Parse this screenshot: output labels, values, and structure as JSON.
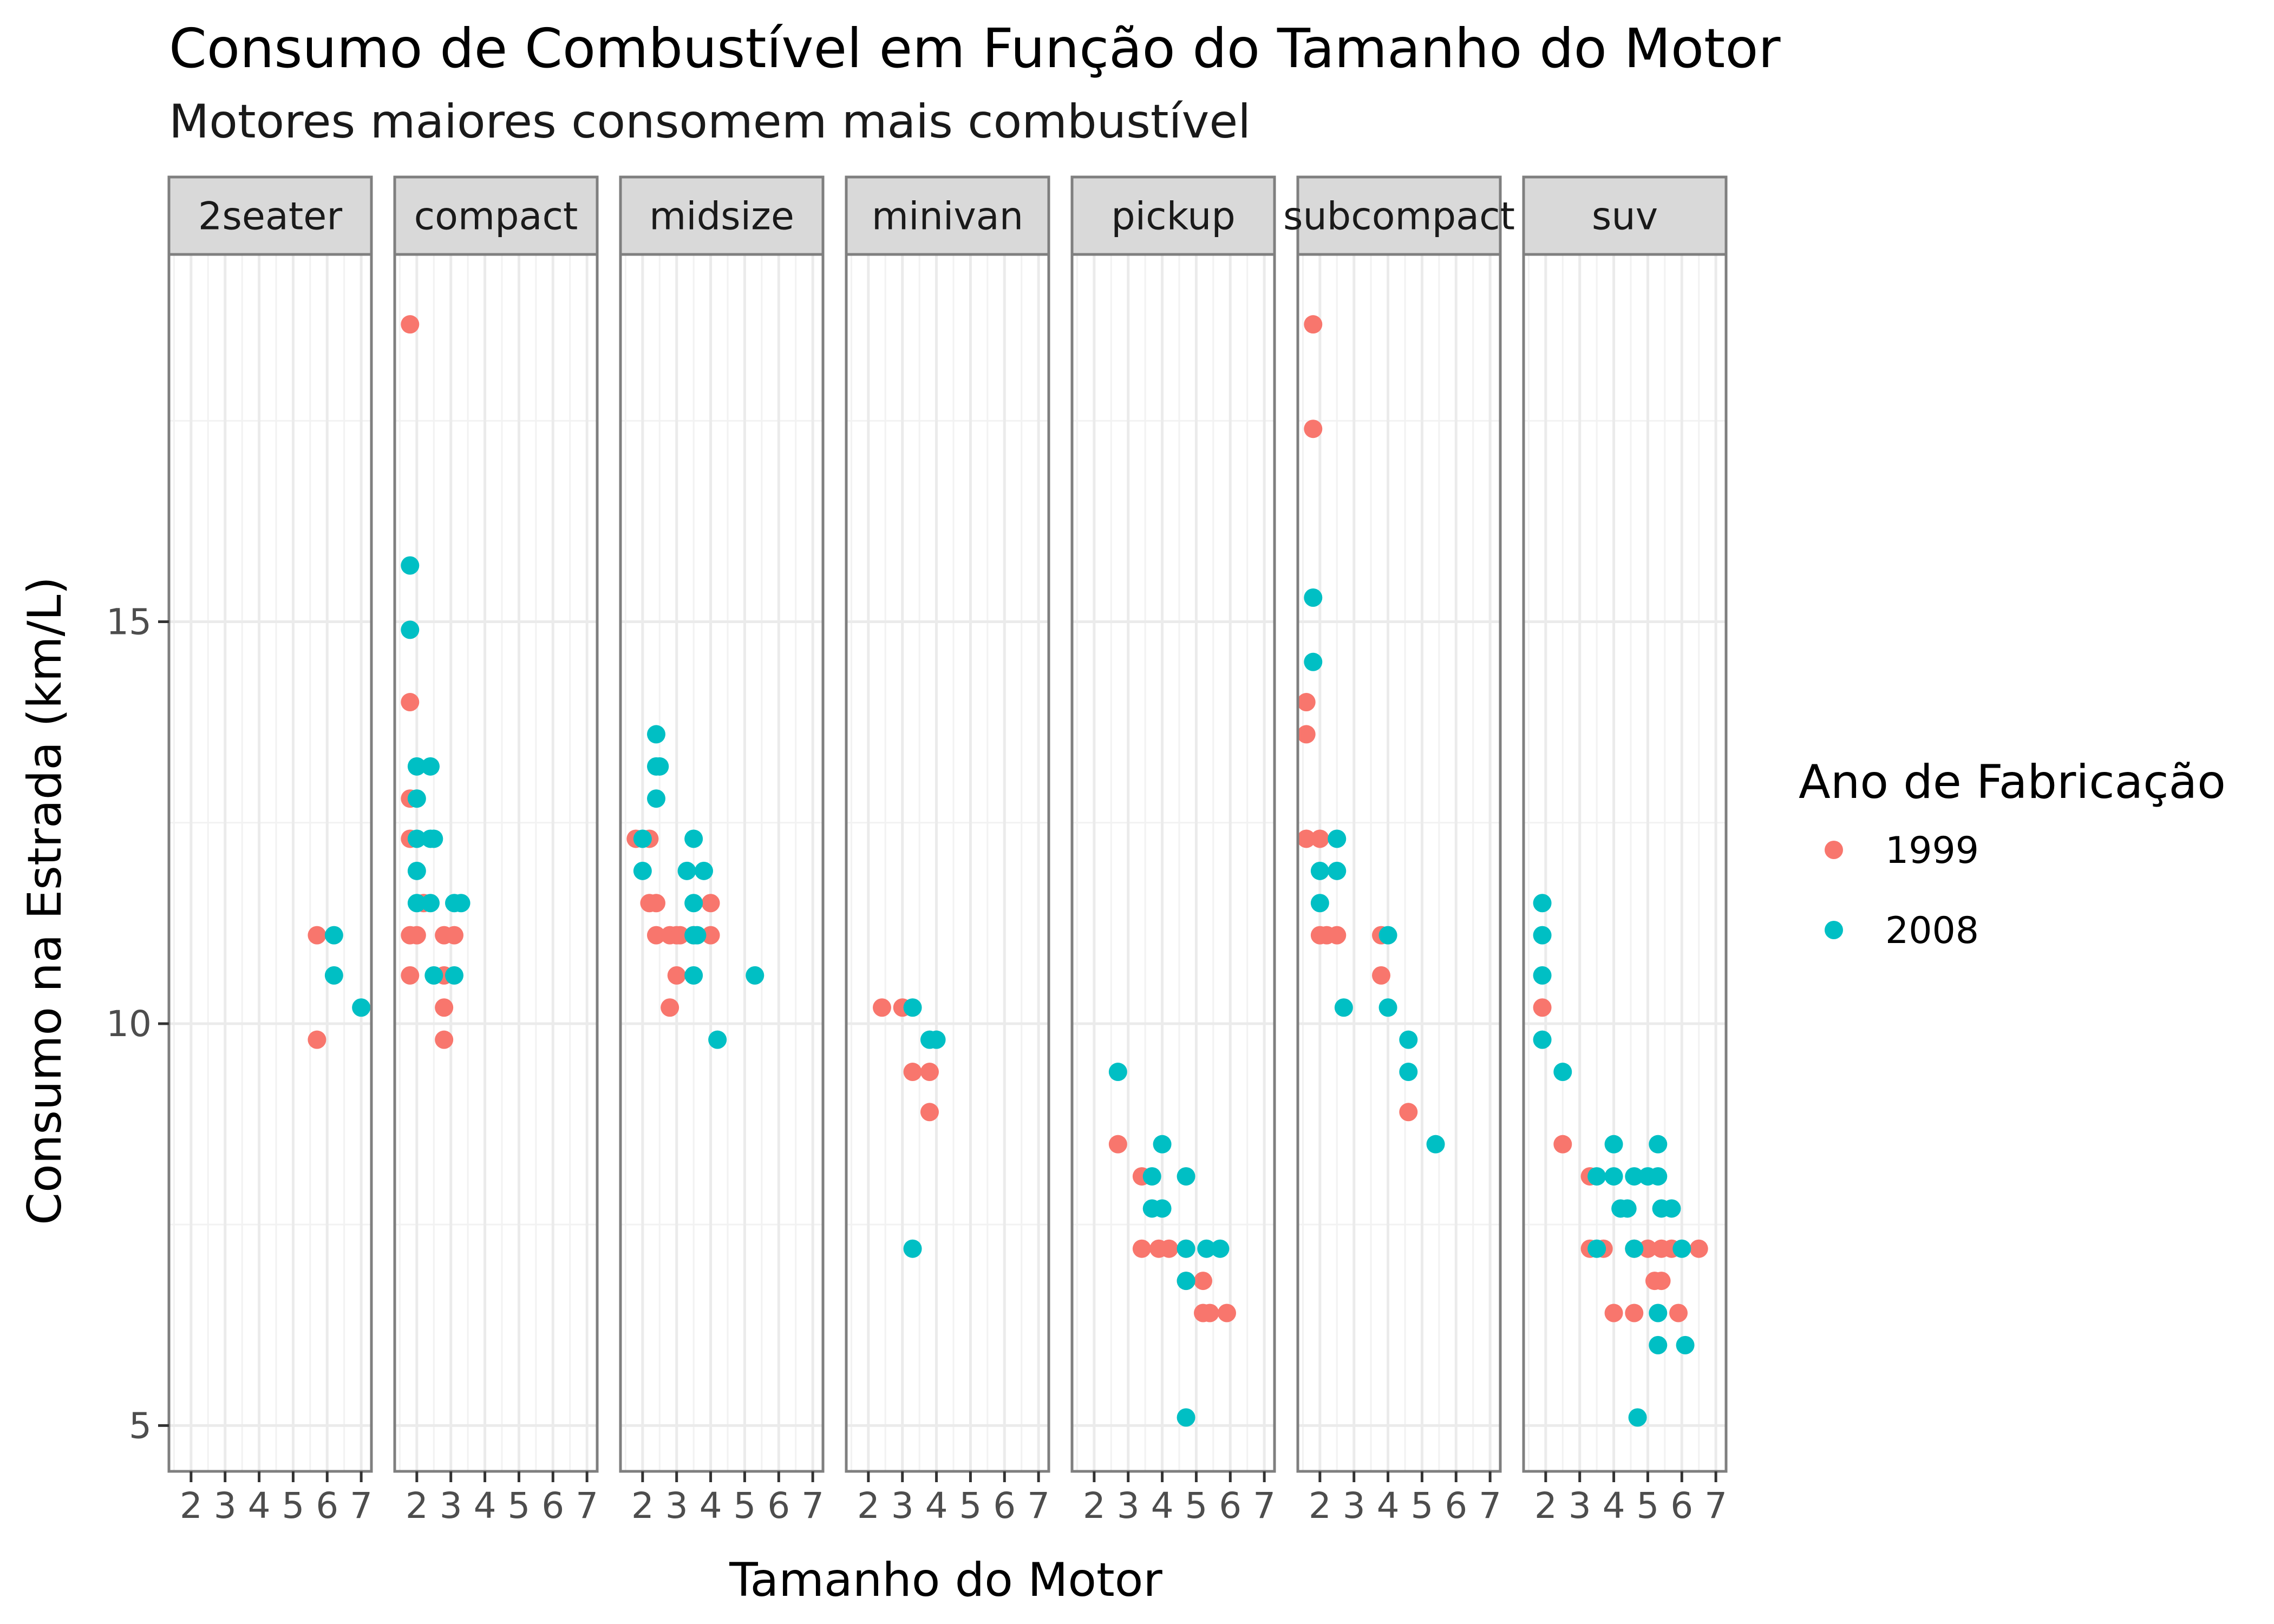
{
  "chart_data": {
    "type": "scatter",
    "title": "Consumo de Combustível em Função do Tamanho do Motor",
    "subtitle": "Motores maiores consomem mais combustível",
    "xlabel": "Tamanho do Motor",
    "ylabel": "Consumo na Estrada (km/L)",
    "xlim": [
      1.35,
      7.3
    ],
    "ylim": [
      4.43,
      19.57
    ],
    "x_ticks": [
      2,
      3,
      4,
      5,
      6,
      7
    ],
    "y_ticks": [
      5,
      10,
      15
    ],
    "grid": true,
    "legend": {
      "title": "Ano de Fabricação",
      "position": "right"
    },
    "colors": {
      "1999": "#F8766D",
      "2008": "#00BFC4"
    },
    "facets": [
      "2seater",
      "compact",
      "midsize",
      "minivan",
      "pickup",
      "subcompact",
      "suv"
    ],
    "series": [
      {
        "name": "1999",
        "points": [
          {
            "facet": "2seater",
            "x": 5.7,
            "y": 11.1
          },
          {
            "facet": "2seater",
            "x": 5.7,
            "y": 9.8
          },
          {
            "facet": "compact",
            "x": 1.8,
            "y": 18.7
          },
          {
            "facet": "compact",
            "x": 1.8,
            "y": 14.0
          },
          {
            "facet": "compact",
            "x": 1.8,
            "y": 12.8
          },
          {
            "facet": "compact",
            "x": 1.8,
            "y": 12.3
          },
          {
            "facet": "compact",
            "x": 1.8,
            "y": 11.1
          },
          {
            "facet": "compact",
            "x": 1.8,
            "y": 10.6
          },
          {
            "facet": "compact",
            "x": 2.0,
            "y": 11.1
          },
          {
            "facet": "compact",
            "x": 2.2,
            "y": 11.5
          },
          {
            "facet": "compact",
            "x": 2.8,
            "y": 11.1
          },
          {
            "facet": "compact",
            "x": 2.8,
            "y": 10.6
          },
          {
            "facet": "compact",
            "x": 2.8,
            "y": 10.2
          },
          {
            "facet": "compact",
            "x": 2.8,
            "y": 9.8
          },
          {
            "facet": "compact",
            "x": 3.1,
            "y": 11.1
          },
          {
            "facet": "midsize",
            "x": 1.8,
            "y": 12.3
          },
          {
            "facet": "midsize",
            "x": 2.2,
            "y": 12.3
          },
          {
            "facet": "midsize",
            "x": 2.2,
            "y": 11.5
          },
          {
            "facet": "midsize",
            "x": 2.4,
            "y": 11.5
          },
          {
            "facet": "midsize",
            "x": 2.4,
            "y": 11.1
          },
          {
            "facet": "midsize",
            "x": 2.8,
            "y": 11.1
          },
          {
            "facet": "midsize",
            "x": 2.8,
            "y": 10.2
          },
          {
            "facet": "midsize",
            "x": 3.0,
            "y": 11.1
          },
          {
            "facet": "midsize",
            "x": 3.0,
            "y": 10.6
          },
          {
            "facet": "midsize",
            "x": 3.1,
            "y": 11.1
          },
          {
            "facet": "midsize",
            "x": 3.5,
            "y": 11.1
          },
          {
            "facet": "midsize",
            "x": 4.0,
            "y": 11.5
          },
          {
            "facet": "midsize",
            "x": 4.0,
            "y": 11.1
          },
          {
            "facet": "minivan",
            "x": 2.4,
            "y": 10.2
          },
          {
            "facet": "minivan",
            "x": 3.0,
            "y": 10.2
          },
          {
            "facet": "minivan",
            "x": 3.3,
            "y": 9.4
          },
          {
            "facet": "minivan",
            "x": 3.8,
            "y": 9.4
          },
          {
            "facet": "minivan",
            "x": 3.8,
            "y": 8.9
          },
          {
            "facet": "pickup",
            "x": 2.7,
            "y": 8.5
          },
          {
            "facet": "pickup",
            "x": 3.4,
            "y": 8.1
          },
          {
            "facet": "pickup",
            "x": 3.4,
            "y": 7.2
          },
          {
            "facet": "pickup",
            "x": 3.9,
            "y": 7.2
          },
          {
            "facet": "pickup",
            "x": 4.2,
            "y": 7.2
          },
          {
            "facet": "pickup",
            "x": 4.7,
            "y": 7.2
          },
          {
            "facet": "pickup",
            "x": 4.7,
            "y": 6.8
          },
          {
            "facet": "pickup",
            "x": 5.2,
            "y": 6.8
          },
          {
            "facet": "pickup",
            "x": 5.2,
            "y": 6.4
          },
          {
            "facet": "pickup",
            "x": 5.4,
            "y": 6.4
          },
          {
            "facet": "pickup",
            "x": 5.9,
            "y": 6.4
          },
          {
            "facet": "subcompact",
            "x": 1.6,
            "y": 14.0
          },
          {
            "facet": "subcompact",
            "x": 1.6,
            "y": 13.6
          },
          {
            "facet": "subcompact",
            "x": 1.6,
            "y": 12.3
          },
          {
            "facet": "subcompact",
            "x": 1.8,
            "y": 18.7
          },
          {
            "facet": "subcompact",
            "x": 1.8,
            "y": 17.4
          },
          {
            "facet": "subcompact",
            "x": 2.0,
            "y": 12.3
          },
          {
            "facet": "subcompact",
            "x": 2.0,
            "y": 11.1
          },
          {
            "facet": "subcompact",
            "x": 2.2,
            "y": 11.1
          },
          {
            "facet": "subcompact",
            "x": 2.5,
            "y": 11.1
          },
          {
            "facet": "subcompact",
            "x": 3.8,
            "y": 11.1
          },
          {
            "facet": "subcompact",
            "x": 3.8,
            "y": 10.6
          },
          {
            "facet": "subcompact",
            "x": 4.6,
            "y": 8.9
          },
          {
            "facet": "suv",
            "x": 1.9,
            "y": 10.2
          },
          {
            "facet": "suv",
            "x": 2.5,
            "y": 8.5
          },
          {
            "facet": "suv",
            "x": 3.3,
            "y": 8.1
          },
          {
            "facet": "suv",
            "x": 3.3,
            "y": 7.2
          },
          {
            "facet": "suv",
            "x": 3.7,
            "y": 7.2
          },
          {
            "facet": "suv",
            "x": 4.0,
            "y": 6.4
          },
          {
            "facet": "suv",
            "x": 4.6,
            "y": 7.2
          },
          {
            "facet": "suv",
            "x": 4.6,
            "y": 6.4
          },
          {
            "facet": "suv",
            "x": 5.0,
            "y": 7.2
          },
          {
            "facet": "suv",
            "x": 5.2,
            "y": 6.8
          },
          {
            "facet": "suv",
            "x": 5.4,
            "y": 7.2
          },
          {
            "facet": "suv",
            "x": 5.4,
            "y": 6.8
          },
          {
            "facet": "suv",
            "x": 5.7,
            "y": 7.2
          },
          {
            "facet": "suv",
            "x": 5.9,
            "y": 6.4
          },
          {
            "facet": "suv",
            "x": 6.5,
            "y": 7.2
          }
        ]
      },
      {
        "name": "2008",
        "points": [
          {
            "facet": "2seater",
            "x": 6.2,
            "y": 11.1
          },
          {
            "facet": "2seater",
            "x": 6.2,
            "y": 10.6
          },
          {
            "facet": "2seater",
            "x": 7.0,
            "y": 10.2
          },
          {
            "facet": "compact",
            "x": 1.8,
            "y": 15.7
          },
          {
            "facet": "compact",
            "x": 1.8,
            "y": 14.9
          },
          {
            "facet": "compact",
            "x": 2.0,
            "y": 13.2
          },
          {
            "facet": "compact",
            "x": 2.0,
            "y": 12.8
          },
          {
            "facet": "compact",
            "x": 2.0,
            "y": 12.3
          },
          {
            "facet": "compact",
            "x": 2.0,
            "y": 11.9
          },
          {
            "facet": "compact",
            "x": 2.0,
            "y": 11.5
          },
          {
            "facet": "compact",
            "x": 2.4,
            "y": 13.2
          },
          {
            "facet": "compact",
            "x": 2.4,
            "y": 12.3
          },
          {
            "facet": "compact",
            "x": 2.4,
            "y": 11.5
          },
          {
            "facet": "compact",
            "x": 2.5,
            "y": 12.3
          },
          {
            "facet": "compact",
            "x": 2.5,
            "y": 10.6
          },
          {
            "facet": "compact",
            "x": 3.1,
            "y": 11.5
          },
          {
            "facet": "compact",
            "x": 3.1,
            "y": 10.6
          },
          {
            "facet": "compact",
            "x": 3.3,
            "y": 11.5
          },
          {
            "facet": "midsize",
            "x": 2.0,
            "y": 12.3
          },
          {
            "facet": "midsize",
            "x": 2.0,
            "y": 11.9
          },
          {
            "facet": "midsize",
            "x": 2.4,
            "y": 13.6
          },
          {
            "facet": "midsize",
            "x": 2.4,
            "y": 13.2
          },
          {
            "facet": "midsize",
            "x": 2.4,
            "y": 12.8
          },
          {
            "facet": "midsize",
            "x": 2.5,
            "y": 13.2
          },
          {
            "facet": "midsize",
            "x": 3.3,
            "y": 11.9
          },
          {
            "facet": "midsize",
            "x": 3.5,
            "y": 12.3
          },
          {
            "facet": "midsize",
            "x": 3.5,
            "y": 11.5
          },
          {
            "facet": "midsize",
            "x": 3.5,
            "y": 11.1
          },
          {
            "facet": "midsize",
            "x": 3.5,
            "y": 10.6
          },
          {
            "facet": "midsize",
            "x": 3.6,
            "y": 11.1
          },
          {
            "facet": "midsize",
            "x": 3.8,
            "y": 11.9
          },
          {
            "facet": "midsize",
            "x": 4.2,
            "y": 9.8
          },
          {
            "facet": "midsize",
            "x": 5.3,
            "y": 10.6
          },
          {
            "facet": "minivan",
            "x": 3.3,
            "y": 10.2
          },
          {
            "facet": "minivan",
            "x": 3.3,
            "y": 7.2
          },
          {
            "facet": "minivan",
            "x": 3.8,
            "y": 9.8
          },
          {
            "facet": "minivan",
            "x": 4.0,
            "y": 9.8
          },
          {
            "facet": "pickup",
            "x": 2.7,
            "y": 9.4
          },
          {
            "facet": "pickup",
            "x": 3.7,
            "y": 8.1
          },
          {
            "facet": "pickup",
            "x": 3.7,
            "y": 7.7
          },
          {
            "facet": "pickup",
            "x": 4.0,
            "y": 8.5
          },
          {
            "facet": "pickup",
            "x": 4.0,
            "y": 7.7
          },
          {
            "facet": "pickup",
            "x": 4.7,
            "y": 8.1
          },
          {
            "facet": "pickup",
            "x": 4.7,
            "y": 7.2
          },
          {
            "facet": "pickup",
            "x": 4.7,
            "y": 6.8
          },
          {
            "facet": "pickup",
            "x": 4.7,
            "y": 5.1
          },
          {
            "facet": "pickup",
            "x": 5.3,
            "y": 7.2
          },
          {
            "facet": "pickup",
            "x": 5.7,
            "y": 7.2
          },
          {
            "facet": "subcompact",
            "x": 1.8,
            "y": 15.3
          },
          {
            "facet": "subcompact",
            "x": 1.8,
            "y": 14.5
          },
          {
            "facet": "subcompact",
            "x": 2.0,
            "y": 11.9
          },
          {
            "facet": "subcompact",
            "x": 2.0,
            "y": 11.5
          },
          {
            "facet": "subcompact",
            "x": 2.5,
            "y": 12.3
          },
          {
            "facet": "subcompact",
            "x": 2.5,
            "y": 11.9
          },
          {
            "facet": "subcompact",
            "x": 2.7,
            "y": 10.2
          },
          {
            "facet": "subcompact",
            "x": 4.0,
            "y": 11.1
          },
          {
            "facet": "subcompact",
            "x": 4.0,
            "y": 10.2
          },
          {
            "facet": "subcompact",
            "x": 4.6,
            "y": 9.8
          },
          {
            "facet": "subcompact",
            "x": 4.6,
            "y": 9.4
          },
          {
            "facet": "subcompact",
            "x": 5.4,
            "y": 8.5
          },
          {
            "facet": "suv",
            "x": 1.9,
            "y": 11.5
          },
          {
            "facet": "suv",
            "x": 1.9,
            "y": 11.1
          },
          {
            "facet": "suv",
            "x": 1.9,
            "y": 10.6
          },
          {
            "facet": "suv",
            "x": 1.9,
            "y": 9.8
          },
          {
            "facet": "suv",
            "x": 2.5,
            "y": 9.4
          },
          {
            "facet": "suv",
            "x": 3.5,
            "y": 8.1
          },
          {
            "facet": "suv",
            "x": 3.5,
            "y": 7.2
          },
          {
            "facet": "suv",
            "x": 4.0,
            "y": 8.5
          },
          {
            "facet": "suv",
            "x": 4.0,
            "y": 8.1
          },
          {
            "facet": "suv",
            "x": 4.2,
            "y": 7.7
          },
          {
            "facet": "suv",
            "x": 4.4,
            "y": 7.7
          },
          {
            "facet": "suv",
            "x": 4.6,
            "y": 8.1
          },
          {
            "facet": "suv",
            "x": 4.6,
            "y": 7.2
          },
          {
            "facet": "suv",
            "x": 4.7,
            "y": 5.1
          },
          {
            "facet": "suv",
            "x": 5.0,
            "y": 8.1
          },
          {
            "facet": "suv",
            "x": 5.3,
            "y": 8.5
          },
          {
            "facet": "suv",
            "x": 5.3,
            "y": 8.1
          },
          {
            "facet": "suv",
            "x": 5.3,
            "y": 6.4
          },
          {
            "facet": "suv",
            "x": 5.3,
            "y": 6.0
          },
          {
            "facet": "suv",
            "x": 5.4,
            "y": 7.7
          },
          {
            "facet": "suv",
            "x": 5.7,
            "y": 7.7
          },
          {
            "facet": "suv",
            "x": 6.0,
            "y": 7.2
          },
          {
            "facet": "suv",
            "x": 6.1,
            "y": 6.0
          }
        ]
      }
    ]
  }
}
